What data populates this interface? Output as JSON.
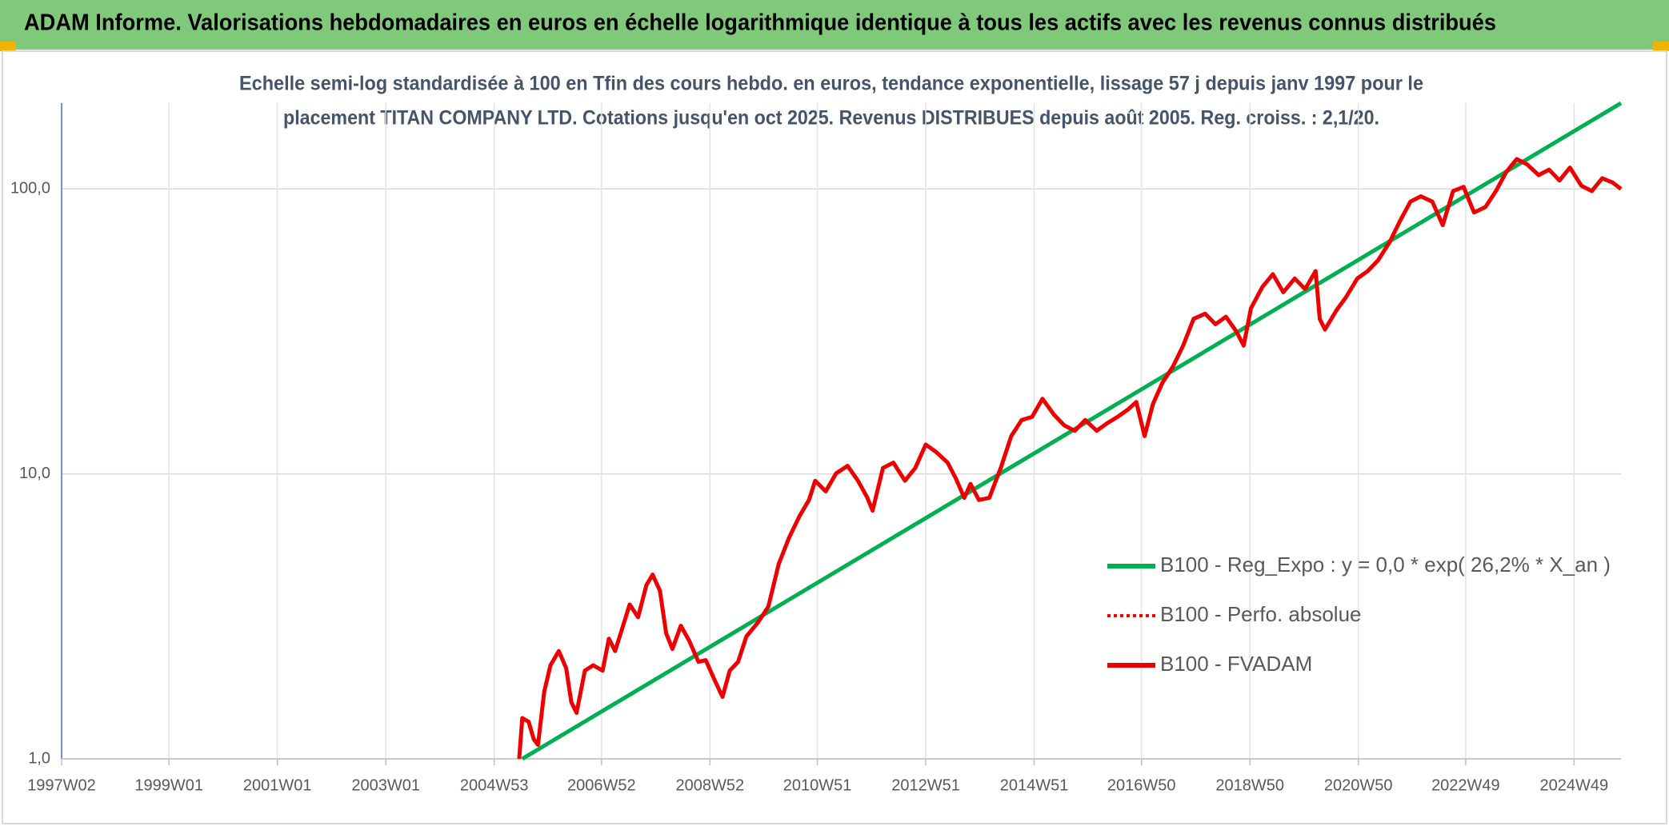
{
  "chart_data": {
    "type": "line",
    "title": "ADAM Informe. Valorisations hebdomadaires en euros en échelle logarithmique identique à tous les actifs avec les revenus connus distribués",
    "subtitle": [
      "Echelle semi-log standardisée à 100 en Tfin des cours hebdo. en euros, tendance exponentielle, lissage 57 j depuis janv 1997 pour le",
      "placement TITAN COMPANY LTD. Cotations jusqu'en oct 2025. Revenus DISTRIBUES depuis août 2005. Reg. croiss. : 2,1/20."
    ],
    "log_y": true,
    "grid": true,
    "legend": "right",
    "xlim": [
      "1997W02",
      "2025W42"
    ],
    "xticks": [
      "1997W02",
      "1999W01",
      "2001W01",
      "2003W01",
      "2004W53",
      "2006W52",
      "2008W52",
      "2010W51",
      "2012W51",
      "2014W51",
      "2016W50",
      "2018W50",
      "2020W50",
      "2022W49",
      "2024W49"
    ],
    "ylim": [
      1,
      200
    ],
    "yticks": [
      {
        "value": 1,
        "label": "1,0"
      },
      {
        "value": 10,
        "label": "10,0"
      },
      {
        "value": 100,
        "label": "100,0"
      }
    ],
    "series": [
      {
        "name": "B100 - Reg_Expo : y = 0,0 * exp( 26,2% *  X_an )",
        "color": "#00b050",
        "dash": false,
        "x": [
          "2005W28",
          "2025W42"
        ],
        "values": [
          1.0,
          200
        ]
      },
      {
        "name": "B100 - Perfo. absolue",
        "color": "#ff0000",
        "dash": true,
        "x": [],
        "values": []
      },
      {
        "name": "B100 - FVADAM",
        "color": "#ee0000",
        "dash": false,
        "x": [
          "2005W25",
          "2005W28",
          "2005W34",
          "2005W39",
          "2005W43",
          "2005W49",
          "2006W03",
          "2006W11",
          "2006W18",
          "2006W23",
          "2006W28",
          "2006W36",
          "2006W44",
          "2007W01",
          "2007W07",
          "2007W13",
          "2007W20",
          "2007W27",
          "2007W35",
          "2007W43",
          "2007W49",
          "2008W04",
          "2008W10",
          "2008W16",
          "2008W24",
          "2008W32",
          "2008W41",
          "2008W48",
          "2009W05",
          "2009W12",
          "2009W19",
          "2009W27",
          "2009W35",
          "2009W46",
          "2010W04",
          "2010W14",
          "2010W24",
          "2010W34",
          "2010W43",
          "2010W49",
          "2011W07",
          "2011W17",
          "2011W28",
          "2011W38",
          "2011W47",
          "2011W52",
          "2012W10",
          "2012W20",
          "2012W31",
          "2012W41",
          "2012W51",
          "2013W09",
          "2013W20",
          "2013W28",
          "2013W36",
          "2013W42",
          "2013W50",
          "2014W08",
          "2014W19",
          "2014W29",
          "2014W39",
          "2014W49",
          "2015W07",
          "2015W18",
          "2015W28",
          "2015W38",
          "2015W48",
          "2016W07",
          "2016W17",
          "2016W27",
          "2016W37",
          "2016W45",
          "2017W01",
          "2017W09",
          "2017W18",
          "2017W28",
          "2017W38",
          "2017W48",
          "2018W07",
          "2018W17",
          "2018W27",
          "2018W37",
          "2018W44",
          "2018W51",
          "2019W10",
          "2019W20",
          "2019W30",
          "2019W41",
          "2019W51",
          "2020W09",
          "2020W13",
          "2020W18",
          "2020W29",
          "2020W38",
          "2020W49",
          "2021W07",
          "2021W17",
          "2021W28",
          "2021W38",
          "2021W48",
          "2022W06",
          "2022W17",
          "2022W27",
          "2022W37",
          "2022W47",
          "2023W05",
          "2023W16",
          "2023W26",
          "2023W36",
          "2023W46",
          "2024W04",
          "2024W15",
          "2024W25",
          "2024W35",
          "2024W45",
          "2025W04",
          "2025W14",
          "2025W24",
          "2025W34",
          "2025W42"
        ],
        "values": [
          1.0,
          1.39,
          1.35,
          1.17,
          1.12,
          1.72,
          2.13,
          2.39,
          2.08,
          1.58,
          1.45,
          2.04,
          2.13,
          2.04,
          2.64,
          2.39,
          2.88,
          3.48,
          3.14,
          4.07,
          4.43,
          3.89,
          2.76,
          2.43,
          2.93,
          2.6,
          2.19,
          2.22,
          1.87,
          1.65,
          2.04,
          2.19,
          2.69,
          3.01,
          3.42,
          4.83,
          5.99,
          7.12,
          8.1,
          9.46,
          8.68,
          10.04,
          10.67,
          9.46,
          8.24,
          7.43,
          10.49,
          10.95,
          9.46,
          10.49,
          12.67,
          11.93,
          10.95,
          9.62,
          8.24,
          9.22,
          8.1,
          8.24,
          10.49,
          13.57,
          15.45,
          15.85,
          18.35,
          16.13,
          14.79,
          14.17,
          15.45,
          14.17,
          15.05,
          15.85,
          16.83,
          17.88,
          13.57,
          17.58,
          20.88,
          23.75,
          28.2,
          35.0,
          36.5,
          33.5,
          35.6,
          31.6,
          28.2,
          38.1,
          45.3,
          50.2,
          43.4,
          48.5,
          44.5,
          51.5,
          35.0,
          32.1,
          37.5,
          41.6,
          48.5,
          51.5,
          56.2,
          65.0,
          77.2,
          90.2,
          94.2,
          90.2,
          74.6,
          98.3,
          101.7,
          82.7,
          86.4,
          98.3,
          114.8,
          127.2,
          121.9,
          111.8,
          116.8,
          107.1,
          118.8,
          102.6,
          98.3,
          109.0,
          105.3,
          100.0
        ]
      }
    ]
  }
}
